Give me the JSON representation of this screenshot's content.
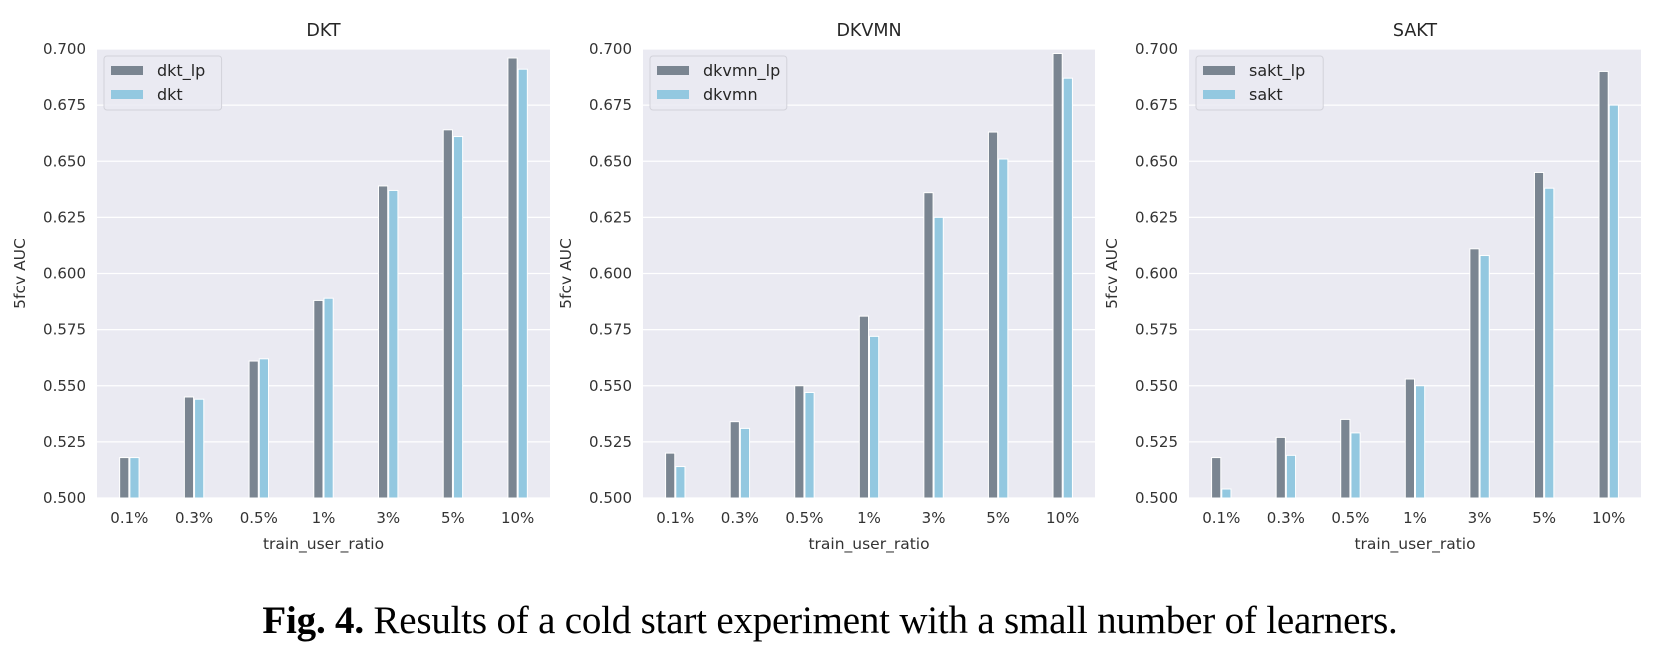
{
  "chart_data": [
    {
      "type": "bar",
      "title": "DKT",
      "xlabel": "train_user_ratio",
      "ylabel": "5fcv AUC",
      "ylim": [
        0.5,
        0.7
      ],
      "yticks": [
        "0.500",
        "0.525",
        "0.550",
        "0.575",
        "0.600",
        "0.625",
        "0.650",
        "0.675",
        "0.700"
      ],
      "categories": [
        "0.1%",
        "0.3%",
        "0.5%",
        "1%",
        "3%",
        "5%",
        "10%"
      ],
      "grid": true,
      "legend_position": "top-left",
      "series": [
        {
          "name": "dkt_lp",
          "color": "#7a8591",
          "values": [
            0.518,
            0.545,
            0.561,
            0.588,
            0.639,
            0.664,
            0.696
          ]
        },
        {
          "name": "dkt",
          "color": "#93c8e0",
          "values": [
            0.518,
            0.544,
            0.562,
            0.589,
            0.637,
            0.661,
            0.691
          ]
        }
      ]
    },
    {
      "type": "bar",
      "title": "DKVMN",
      "xlabel": "train_user_ratio",
      "ylabel": "5fcv AUC",
      "ylim": [
        0.5,
        0.7
      ],
      "yticks": [
        "0.500",
        "0.525",
        "0.550",
        "0.575",
        "0.600",
        "0.625",
        "0.650",
        "0.675",
        "0.700"
      ],
      "categories": [
        "0.1%",
        "0.3%",
        "0.5%",
        "1%",
        "3%",
        "5%",
        "10%"
      ],
      "grid": true,
      "legend_position": "top-left",
      "series": [
        {
          "name": "dkvmn_lp",
          "color": "#7a8591",
          "values": [
            0.52,
            0.534,
            0.55,
            0.581,
            0.636,
            0.663,
            0.698
          ]
        },
        {
          "name": "dkvmn",
          "color": "#93c8e0",
          "values": [
            0.514,
            0.531,
            0.547,
            0.572,
            0.625,
            0.651,
            0.687
          ]
        }
      ]
    },
    {
      "type": "bar",
      "title": "SAKT",
      "xlabel": "train_user_ratio",
      "ylabel": "5fcv AUC",
      "ylim": [
        0.5,
        0.7
      ],
      "yticks": [
        "0.500",
        "0.525",
        "0.550",
        "0.575",
        "0.600",
        "0.625",
        "0.650",
        "0.675",
        "0.700"
      ],
      "categories": [
        "0.1%",
        "0.3%",
        "0.5%",
        "1%",
        "3%",
        "5%",
        "10%"
      ],
      "grid": true,
      "legend_position": "top-left",
      "series": [
        {
          "name": "sakt_lp",
          "color": "#7a8591",
          "values": [
            0.518,
            0.527,
            0.535,
            0.553,
            0.611,
            0.645,
            0.69
          ]
        },
        {
          "name": "sakt",
          "color": "#93c8e0",
          "values": [
            0.504,
            0.519,
            0.529,
            0.55,
            0.608,
            0.638,
            0.675
          ]
        }
      ]
    }
  ],
  "caption": {
    "label": "Fig. 4.",
    "text": " Results of a cold start experiment with a small number of learners."
  },
  "colors": {
    "plot_background": "#eaeaf2",
    "grid": "#ffffff"
  }
}
